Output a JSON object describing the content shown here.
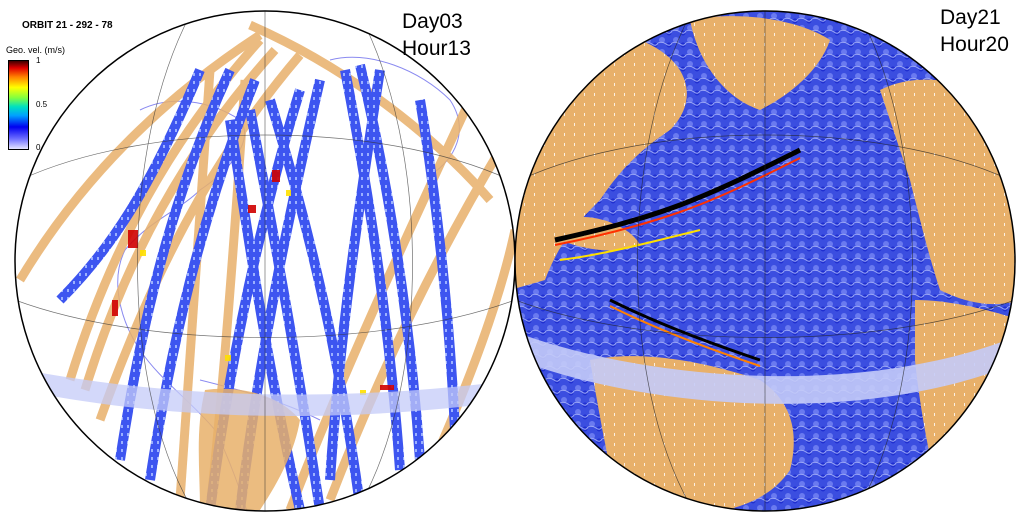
{
  "title": "ORBIT 21 - 292 - 78",
  "colorbar": {
    "label": "Geo. vel. (m/s)",
    "ticks": [
      "1",
      "0.5",
      "0"
    ],
    "colors": [
      "#e6e6ff",
      "#0000f0",
      "#00e0c0",
      "#ffff00",
      "#e00000",
      "#400000"
    ]
  },
  "panels": [
    {
      "id": "left",
      "day": "Day03",
      "hour": "Hour13",
      "content": "satellite swath tracks over Atlantic"
    },
    {
      "id": "right",
      "day": "Day21",
      "hour": "Hour20",
      "content": "full ocean geostrophic velocity field"
    }
  ],
  "palette": {
    "land": "#e8b06a",
    "ocean_field": "#3a4de0",
    "ocean_light": "#8f9cf2",
    "coast_line": "#7070f0",
    "globe_border": "#000000",
    "gap_band": "#c4cbf8"
  }
}
